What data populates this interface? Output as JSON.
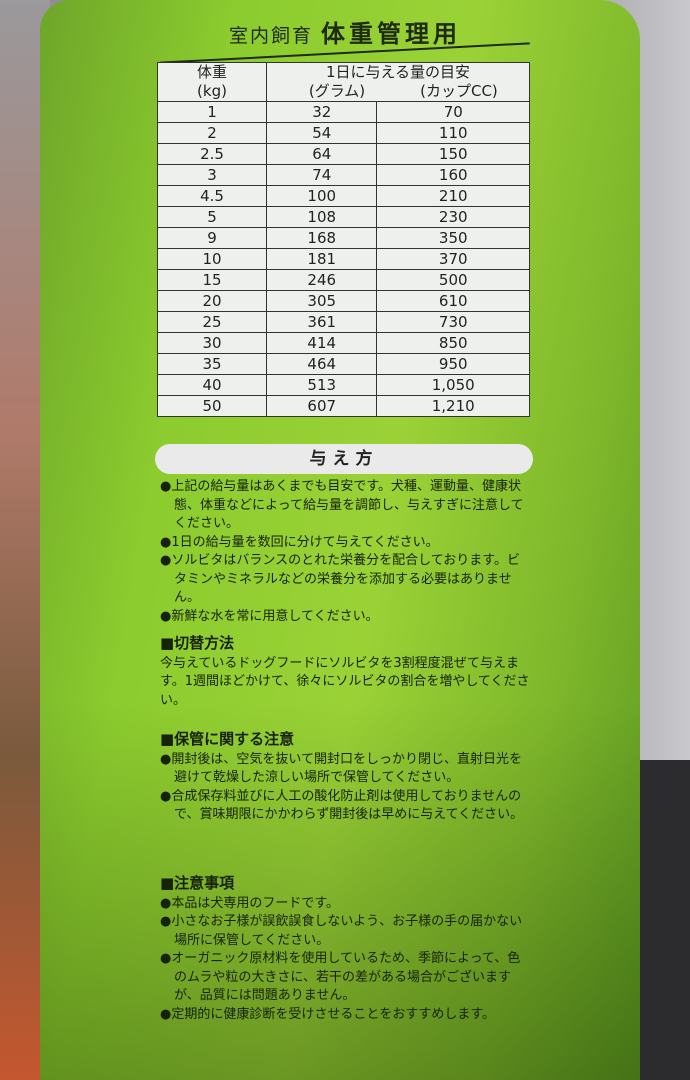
{
  "package": {
    "colors": {
      "bag_green": "#8ccc2e",
      "text": "#17220b",
      "table_bg": "#eef0ee"
    },
    "subtitle_small": "室内飼育",
    "subtitle_large": "体重管理用",
    "table": {
      "header_weight": "体重",
      "header_weight_unit": "(kg)",
      "header_amount": "1日に与える量の目安",
      "header_grams": "(グラム)",
      "header_cups": "(カップCC)",
      "rows": [
        {
          "kg": "1",
          "g": "32",
          "cc": "70"
        },
        {
          "kg": "2",
          "g": "54",
          "cc": "110"
        },
        {
          "kg": "2.5",
          "g": "64",
          "cc": "150"
        },
        {
          "kg": "3",
          "g": "74",
          "cc": "160"
        },
        {
          "kg": "4.5",
          "g": "100",
          "cc": "210"
        },
        {
          "kg": "5",
          "g": "108",
          "cc": "230"
        },
        {
          "kg": "9",
          "g": "168",
          "cc": "350"
        },
        {
          "kg": "10",
          "g": "181",
          "cc": "370"
        },
        {
          "kg": "15",
          "g": "246",
          "cc": "500"
        },
        {
          "kg": "20",
          "g": "305",
          "cc": "610"
        },
        {
          "kg": "25",
          "g": "361",
          "cc": "730"
        },
        {
          "kg": "30",
          "g": "414",
          "cc": "850"
        },
        {
          "kg": "35",
          "g": "464",
          "cc": "950"
        },
        {
          "kg": "40",
          "g": "513",
          "cc": "1,050"
        },
        {
          "kg": "50",
          "g": "607",
          "cc": "1,210"
        }
      ]
    },
    "feeding": {
      "title": "与え方",
      "bullets": [
        "●上記の給与量はあくまでも目安です。犬種、運動量、健康状態、体重などによって給与量を調節し、与えすぎに注意してください。",
        "●1日の給与量を数回に分けて与えてください。",
        "●ソルビタはバランスのとれた栄養分を配合しております。ビタミンやミネラルなどの栄養分を添加する必要はありません。",
        "●新鮮な水を常に用意してください。"
      ]
    },
    "switching": {
      "title": "■切替方法",
      "body": "今与えているドッグフードにソルビタを3割程度混ぜて与えます。1週間ほどかけて、徐々にソルビタの割合を増やしてください。"
    },
    "storage": {
      "title": "■保管に関する注意",
      "bullets": [
        "●開封後は、空気を抜いて開封口をしっかり閉じ、直射日光を避けて乾燥した涼しい場所で保管してください。",
        "●合成保存料並びに人工の酸化防止剤は使用しておりませんので、賞味期限にかかわらず開封後は早めに与えてください。"
      ]
    },
    "notes": {
      "title": "■注意事項",
      "bullets": [
        "●本品は犬専用のフードです。",
        "●小さなお子様が誤飲誤食しないよう、お子様の手の届かない場所に保管してください。",
        "●オーガニック原材料を使用しているため、季節によって、色のムラや粒の大きさに、若干の差がある場合がございますが、品質には問題ありません。",
        "●定期的に健康診断を受けさせることをおすすめします。"
      ]
    }
  }
}
